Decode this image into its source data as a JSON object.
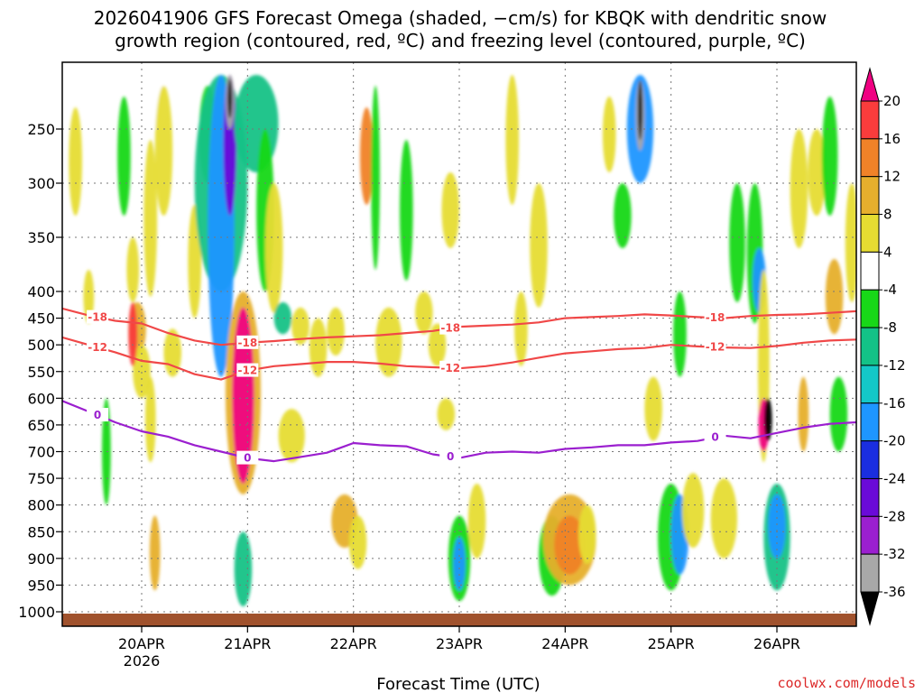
{
  "chart_data": {
    "type": "heatmap",
    "title_lines": [
      "2026041906 GFS Forecast Omega (shaded, −cm/s) for KBQK with dendritic snow",
      "growth region (contoured, red, ºC) and freezing level (contoured, purple, ºC)"
    ],
    "xlabel": "Forecast Time (UTC)",
    "credit": "coolwx.com/models",
    "x_ticks": [
      {
        "label": "20APR",
        "sub": "2026",
        "hours": 18
      },
      {
        "label": "21APR",
        "sub": "",
        "hours": 42
      },
      {
        "label": "22APR",
        "sub": "",
        "hours": 66
      },
      {
        "label": "23APR",
        "sub": "",
        "hours": 90
      },
      {
        "label": "24APR",
        "sub": "",
        "hours": 114
      },
      {
        "label": "25APR",
        "sub": "",
        "hours": 138
      },
      {
        "label": "26APR",
        "sub": "",
        "hours": 162
      }
    ],
    "xlim": [
      0,
      180
    ],
    "y_ticks": [
      250,
      300,
      350,
      400,
      450,
      500,
      550,
      600,
      650,
      700,
      750,
      800,
      850,
      900,
      950,
      1000
    ],
    "ylim": [
      200,
      1010
    ],
    "colorbar": {
      "levels": [
        -36,
        -32,
        -28,
        -24,
        -20,
        -16,
        -12,
        -8,
        -4,
        4,
        8,
        12,
        16,
        20
      ],
      "colors": [
        "#000000",
        "#a8a8a8",
        "#9b1fcf",
        "#6a0ad8",
        "#1a2ee0",
        "#1e96ff",
        "#14c8c8",
        "#13c287",
        "#18d818",
        "#ffffff",
        "#e6dc32",
        "#e6af2d",
        "#f08228",
        "#fa3c3c",
        "#f00082"
      ]
    },
    "series": [
      {
        "name": "-18",
        "color": "#f04848",
        "hours": [
          0,
          6,
          12,
          18,
          24,
          30,
          36,
          42,
          48,
          54,
          60,
          66,
          72,
          78,
          84,
          90,
          96,
          102,
          108,
          114,
          120,
          126,
          132,
          138,
          144,
          150,
          156,
          162,
          168,
          174,
          180
        ],
        "values": [
          432,
          445,
          455,
          460,
          478,
          492,
          500,
          496,
          493,
          489,
          486,
          484,
          482,
          478,
          474,
          466,
          464,
          462,
          458,
          450,
          448,
          446,
          443,
          445,
          448,
          450,
          446,
          444,
          443,
          440,
          437
        ]
      },
      {
        "name": "-12",
        "color": "#f04848",
        "hours": [
          0,
          6,
          12,
          18,
          24,
          30,
          36,
          42,
          48,
          54,
          60,
          66,
          72,
          78,
          84,
          90,
          96,
          102,
          108,
          114,
          120,
          126,
          132,
          138,
          144,
          150,
          156,
          162,
          168,
          174,
          180
        ],
        "values": [
          486,
          500,
          514,
          530,
          536,
          555,
          565,
          548,
          540,
          536,
          532,
          532,
          535,
          540,
          542,
          544,
          540,
          533,
          524,
          516,
          512,
          508,
          506,
          500,
          503,
          505,
          506,
          502,
          496,
          492,
          490
        ]
      },
      {
        "name": "0",
        "color": "#9b1fcf",
        "hours": [
          0,
          6,
          12,
          18,
          24,
          30,
          36,
          42,
          48,
          54,
          60,
          66,
          72,
          78,
          84,
          90,
          96,
          102,
          108,
          114,
          120,
          126,
          132,
          138,
          144,
          150,
          156,
          162,
          168,
          174,
          180
        ],
        "values": [
          605,
          625,
          645,
          662,
          672,
          688,
          700,
          712,
          718,
          710,
          702,
          684,
          688,
          690,
          705,
          712,
          702,
          700,
          702,
          695,
          692,
          688,
          688,
          683,
          680,
          670,
          675,
          665,
          655,
          648,
          645
        ]
      }
    ]
  }
}
